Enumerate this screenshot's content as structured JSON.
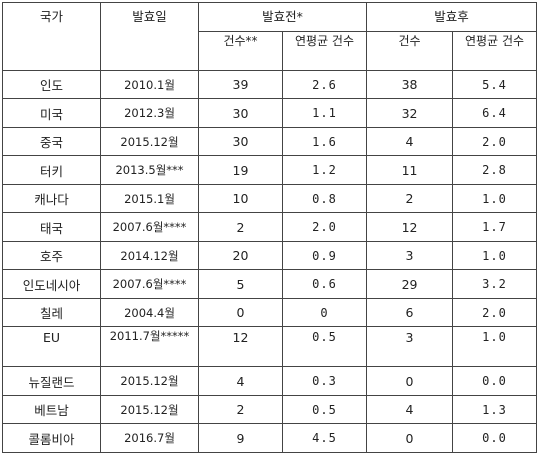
{
  "headers": {
    "country": "국가",
    "effective_date": "발효일",
    "before": "발효전*",
    "after": "발효후",
    "count_before": "건수**",
    "avg_before": "연평균 건수",
    "count_after": "건수",
    "avg_after": "연평균 건수"
  },
  "rows": [
    {
      "country": "인도",
      "date": "2010.1월",
      "count_before": "39",
      "avg_before": "2.6",
      "count_after": "38",
      "avg_after": "5.4"
    },
    {
      "country": "미국",
      "date": "2012.3월",
      "count_before": "30",
      "avg_before": "1.1",
      "count_after": "32",
      "avg_after": "6.4"
    },
    {
      "country": "중국",
      "date": "2015.12월",
      "count_before": "30",
      "avg_before": "1.6",
      "count_after": "4",
      "avg_after": "2.0"
    },
    {
      "country": "터키",
      "date": "2013.5월***",
      "count_before": "19",
      "avg_before": "1.2",
      "count_after": "11",
      "avg_after": "2.8"
    },
    {
      "country": "캐나다",
      "date": "2015.1월",
      "count_before": "10",
      "avg_before": "0.8",
      "count_after": "2",
      "avg_after": "1.0"
    },
    {
      "country": "태국",
      "date": "2007.6월****",
      "count_before": "2",
      "avg_before": "2.0",
      "count_after": "12",
      "avg_after": "1.7"
    },
    {
      "country": "호주",
      "date": "2014.12월",
      "count_before": "20",
      "avg_before": "0.9",
      "count_after": "3",
      "avg_after": "1.0"
    },
    {
      "country": "인도네시아",
      "date": "2007.6월****",
      "count_before": "5",
      "avg_before": "0.6",
      "count_after": "29",
      "avg_after": "3.2"
    },
    {
      "country": "칠레",
      "date": "2004.4월",
      "count_before": "0",
      "avg_before": "0",
      "count_after": "6",
      "avg_after": "2.0"
    },
    {
      "country": "EU",
      "date": "2011.7월*****",
      "count_before": "12",
      "avg_before": "0.5",
      "count_after": "3",
      "avg_after": "1.0"
    },
    {
      "country": "뉴질랜드",
      "date": "2015.12월",
      "count_before": "4",
      "avg_before": "0.3",
      "count_after": "0",
      "avg_after": "0.0"
    },
    {
      "country": "베트남",
      "date": "2015.12월",
      "count_before": "2",
      "avg_before": "0.5",
      "count_after": "4",
      "avg_after": "1.3"
    },
    {
      "country": "콜롬비아",
      "date": "2016.7월",
      "count_before": "9",
      "avg_before": "4.5",
      "count_after": "0",
      "avg_after": "0.0"
    }
  ]
}
